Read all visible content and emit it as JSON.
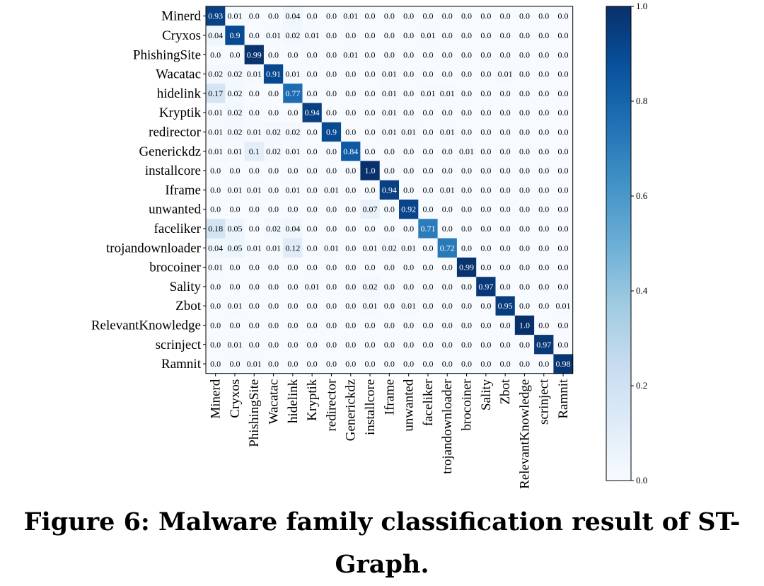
{
  "caption": "Figure 6: Malware family classification result of ST-Graph.",
  "chart_data": {
    "type": "heatmap",
    "title": "",
    "xlabel": "",
    "ylabel": "",
    "labels": [
      "Minerd",
      "Cryxos",
      "PhishingSite",
      "Wacatac",
      "hidelink",
      "Kryptik",
      "redirector",
      "Generickdz",
      "installcore",
      "Iframe",
      "unwanted",
      "faceliker",
      "trojandownloader",
      "brocoiner",
      "Sality",
      "Zbot",
      "RelevantKnowledge",
      "scrinject",
      "Ramnit"
    ],
    "matrix": [
      [
        0.93,
        0.01,
        0.0,
        0.0,
        0.04,
        0.0,
        0.0,
        0.01,
        0.0,
        0.0,
        0.0,
        0.0,
        0.0,
        0.0,
        0.0,
        0.0,
        0.0,
        0.0,
        0.0
      ],
      [
        0.04,
        0.9,
        0.0,
        0.01,
        0.02,
        0.01,
        0.0,
        0.0,
        0.0,
        0.0,
        0.0,
        0.01,
        0.0,
        0.0,
        0.0,
        0.0,
        0.0,
        0.0,
        0.0
      ],
      [
        0.0,
        0.0,
        0.99,
        0.0,
        0.0,
        0.0,
        0.0,
        0.01,
        0.0,
        0.0,
        0.0,
        0.0,
        0.0,
        0.0,
        0.0,
        0.0,
        0.0,
        0.0,
        0.0
      ],
      [
        0.02,
        0.02,
        0.01,
        0.91,
        0.01,
        0.0,
        0.0,
        0.0,
        0.0,
        0.01,
        0.0,
        0.0,
        0.0,
        0.0,
        0.0,
        0.01,
        0.0,
        0.0,
        0.0
      ],
      [
        0.17,
        0.02,
        0.0,
        0.0,
        0.77,
        0.0,
        0.0,
        0.0,
        0.0,
        0.01,
        0.0,
        0.01,
        0.01,
        0.0,
        0.0,
        0.0,
        0.0,
        0.0,
        0.0
      ],
      [
        0.01,
        0.02,
        0.0,
        0.0,
        0.0,
        0.94,
        0.0,
        0.0,
        0.0,
        0.01,
        0.0,
        0.0,
        0.0,
        0.0,
        0.0,
        0.0,
        0.0,
        0.0,
        0.0
      ],
      [
        0.01,
        0.02,
        0.01,
        0.02,
        0.02,
        0.0,
        0.9,
        0.0,
        0.0,
        0.01,
        0.01,
        0.0,
        0.01,
        0.0,
        0.0,
        0.0,
        0.0,
        0.0,
        0.0
      ],
      [
        0.01,
        0.01,
        0.1,
        0.02,
        0.01,
        0.0,
        0.0,
        0.84,
        0.0,
        0.0,
        0.0,
        0.0,
        0.0,
        0.01,
        0.0,
        0.0,
        0.0,
        0.0,
        0.0
      ],
      [
        0.0,
        0.0,
        0.0,
        0.0,
        0.0,
        0.0,
        0.0,
        0.0,
        1.0,
        0.0,
        0.0,
        0.0,
        0.0,
        0.0,
        0.0,
        0.0,
        0.0,
        0.0,
        0.0
      ],
      [
        0.0,
        0.01,
        0.01,
        0.0,
        0.01,
        0.0,
        0.01,
        0.0,
        0.0,
        0.94,
        0.0,
        0.0,
        0.01,
        0.0,
        0.0,
        0.0,
        0.0,
        0.0,
        0.0
      ],
      [
        0.0,
        0.0,
        0.0,
        0.0,
        0.0,
        0.0,
        0.0,
        0.0,
        0.07,
        0.0,
        0.92,
        0.0,
        0.0,
        0.0,
        0.0,
        0.0,
        0.0,
        0.0,
        0.0
      ],
      [
        0.18,
        0.05,
        0.0,
        0.02,
        0.04,
        0.0,
        0.0,
        0.0,
        0.0,
        0.0,
        0.0,
        0.71,
        0.0,
        0.0,
        0.0,
        0.0,
        0.0,
        0.0,
        0.0
      ],
      [
        0.04,
        0.05,
        0.01,
        0.01,
        0.12,
        0.0,
        0.01,
        0.0,
        0.01,
        0.02,
        0.01,
        0.0,
        0.72,
        0.0,
        0.0,
        0.0,
        0.0,
        0.0,
        0.0
      ],
      [
        0.01,
        0.0,
        0.0,
        0.0,
        0.0,
        0.0,
        0.0,
        0.0,
        0.0,
        0.0,
        0.0,
        0.0,
        0.0,
        0.99,
        0.0,
        0.0,
        0.0,
        0.0,
        0.0
      ],
      [
        0.0,
        0.0,
        0.0,
        0.0,
        0.0,
        0.01,
        0.0,
        0.0,
        0.02,
        0.0,
        0.0,
        0.0,
        0.0,
        0.0,
        0.97,
        0.0,
        0.0,
        0.0,
        0.0
      ],
      [
        0.0,
        0.01,
        0.0,
        0.0,
        0.0,
        0.0,
        0.0,
        0.0,
        0.01,
        0.0,
        0.01,
        0.0,
        0.0,
        0.0,
        0.0,
        0.95,
        0.0,
        0.0,
        0.01
      ],
      [
        0.0,
        0.0,
        0.0,
        0.0,
        0.0,
        0.0,
        0.0,
        0.0,
        0.0,
        0.0,
        0.0,
        0.0,
        0.0,
        0.0,
        0.0,
        0.0,
        1.0,
        0.0,
        0.0
      ],
      [
        0.0,
        0.01,
        0.0,
        0.0,
        0.0,
        0.0,
        0.0,
        0.0,
        0.0,
        0.0,
        0.0,
        0.0,
        0.0,
        0.0,
        0.0,
        0.0,
        0.0,
        0.97,
        0.0
      ],
      [
        0.0,
        0.0,
        0.01,
        0.0,
        0.0,
        0.0,
        0.0,
        0.0,
        0.0,
        0.0,
        0.0,
        0.0,
        0.0,
        0.0,
        0.0,
        0.0,
        0.0,
        0.0,
        0.98
      ]
    ],
    "colorbar": {
      "range": [
        0.0,
        1.0
      ],
      "ticks": [
        "0.0",
        "0.2",
        "0.4",
        "0.6",
        "0.8",
        "1.0"
      ],
      "colormap": "Blues",
      "low_color": "#f7fbff",
      "high_color": "#08306b"
    },
    "grid": false
  }
}
